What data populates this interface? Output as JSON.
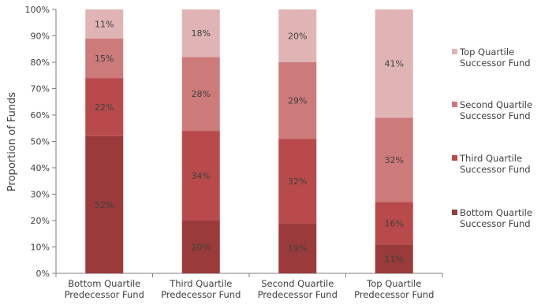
{
  "colors": {
    "background": "#ffffff",
    "axis": "#7f7f7f",
    "text": "#404040"
  },
  "chart_data": {
    "type": "bar",
    "stacked": true,
    "categories": [
      [
        "Bottom Quartile",
        "Predecessor Fund"
      ],
      [
        "Third Quartile",
        "Predecessor Fund"
      ],
      [
        "Second Quartile",
        "Predecessor Fund"
      ],
      [
        "Top Quartile",
        "Predecessor Fund"
      ]
    ],
    "series": [
      {
        "name": "Bottom Quartile Successor Fund",
        "legend_lines": [
          "Bottom Quartile",
          "Successor Fund"
        ],
        "color": "#9a3a3b",
        "values": [
          52,
          20,
          19,
          11
        ],
        "labels": [
          "52%",
          "20%",
          "19%",
          "11%"
        ]
      },
      {
        "name": "Third Quartile Successor Fund",
        "legend_lines": [
          "Third Quartile",
          "Successor Fund"
        ],
        "color": "#b84a4b",
        "values": [
          22,
          34,
          32,
          16
        ],
        "labels": [
          "22%",
          "34%",
          "32%",
          "16%"
        ]
      },
      {
        "name": "Second Quartile Successor Fund",
        "legend_lines": [
          "Second Quartile",
          "Successor Fund"
        ],
        "color": "#cd7a7b",
        "values": [
          15,
          28,
          29,
          32
        ],
        "labels": [
          "15%",
          "28%",
          "29%",
          "32%"
        ]
      },
      {
        "name": "Top Quartile Successor Fund",
        "legend_lines": [
          "Top Quartile",
          "Successor Fund"
        ],
        "color": "#e0b4b4",
        "values": [
          11,
          18,
          20,
          41
        ],
        "labels": [
          "11%",
          "18%",
          "20%",
          "41%"
        ]
      }
    ],
    "title": "",
    "xlabel": "",
    "ylabel": "Proportion of Funds",
    "ylim": [
      0,
      100
    ],
    "yticks": [
      "0%",
      "10%",
      "20%",
      "30%",
      "40%",
      "50%",
      "60%",
      "70%",
      "80%",
      "90%",
      "100%"
    ],
    "grid": false,
    "legend_position": "right"
  }
}
